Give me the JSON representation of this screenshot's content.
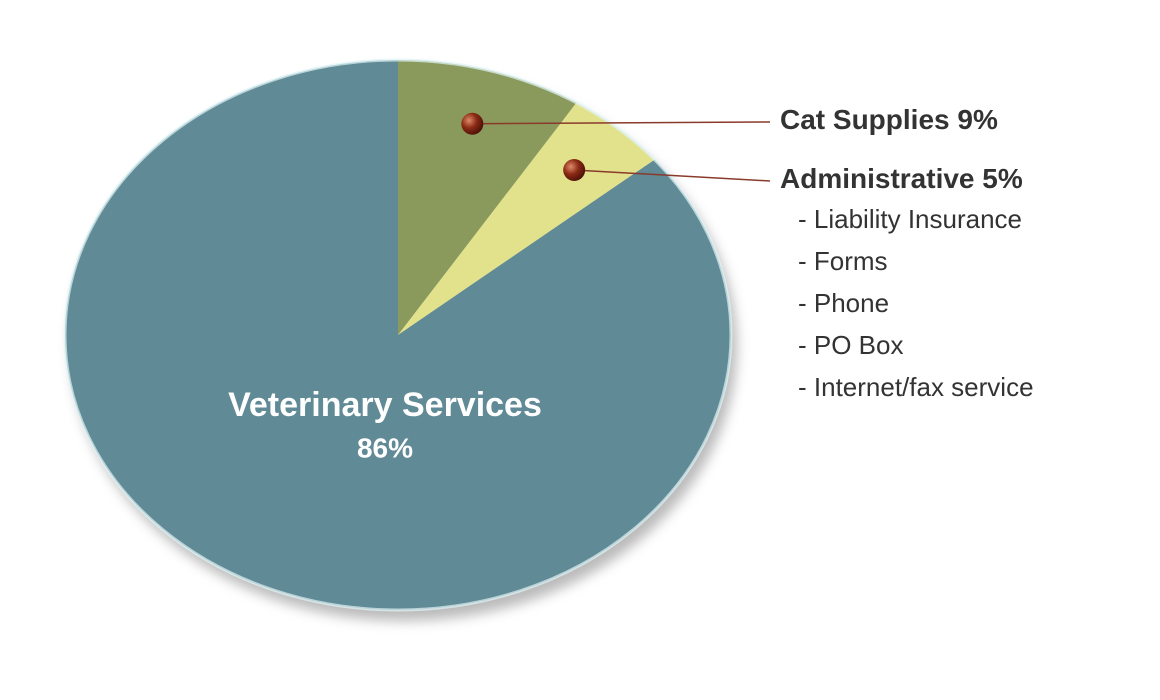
{
  "chart_data": {
    "type": "pie",
    "categories": [
      "Cat Supplies",
      "Administrative",
      "Veterinary Services"
    ],
    "values": [
      9,
      5,
      86
    ],
    "value_labels": [
      "9%",
      "5%",
      "86%"
    ],
    "colors": [
      "#8a9a5c",
      "#e2e28c",
      "#608a95"
    ],
    "details": [
      "- Liability Insurance",
      "- Forms",
      "- Phone",
      "- PO Box",
      "- Internet/fax service"
    ]
  }
}
